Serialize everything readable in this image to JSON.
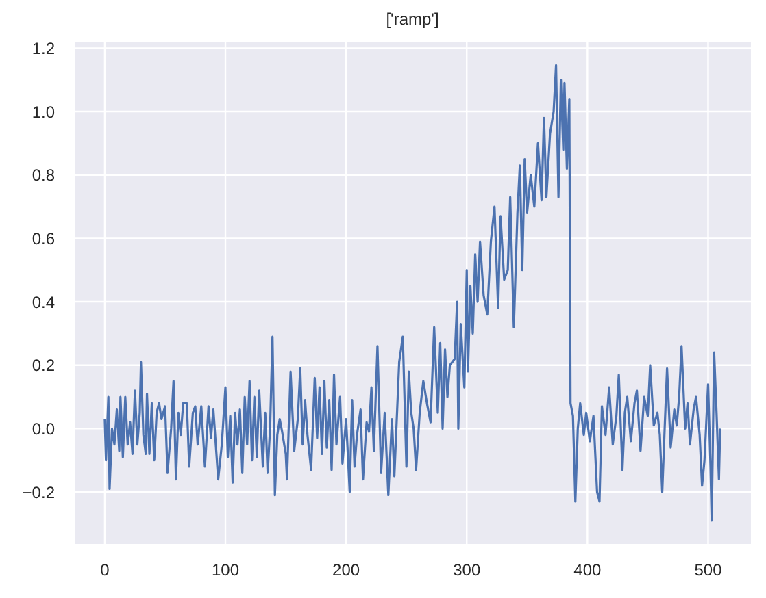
{
  "chart_data": {
    "type": "line",
    "title": "['ramp']",
    "xlim": [
      -25.5,
      535.5
    ],
    "ylim": [
      -0.366,
      1.218
    ],
    "xticks": [
      0,
      100,
      200,
      300,
      400,
      500
    ],
    "yticks": [
      {
        "value": -0.2,
        "label": "−0.2"
      },
      {
        "value": 0,
        "label": "0.0"
      },
      {
        "value": 0.2,
        "label": "0.2"
      },
      {
        "value": 0.4,
        "label": "0.4"
      },
      {
        "value": 0.6,
        "label": "0.6"
      },
      {
        "value": 0.8,
        "label": "0.8"
      },
      {
        "value": 1.0,
        "label": "1.0"
      },
      {
        "value": 1.2,
        "label": "1.2"
      }
    ],
    "grid": true,
    "marker": "none",
    "line_style": "solid",
    "series": [
      {
        "color": "#4c72b0",
        "x": [
          0,
          1,
          3,
          4,
          6,
          8,
          10,
          12,
          13,
          15,
          17,
          19,
          21,
          23,
          25,
          27,
          29,
          30,
          32,
          34,
          35,
          37,
          39,
          41,
          43,
          45,
          47,
          50,
          52,
          55,
          57,
          59,
          61,
          63,
          65,
          68,
          70,
          73,
          75,
          77,
          80,
          83,
          86,
          88,
          90,
          94,
          97,
          100,
          102,
          104,
          106,
          108,
          110,
          112,
          114,
          116,
          118,
          120,
          122,
          124,
          126,
          128,
          131,
          133,
          135,
          137,
          139,
          141,
          143,
          145,
          147,
          150,
          151,
          154,
          157,
          160,
          162,
          164,
          166,
          168,
          171,
          174,
          176,
          178,
          180,
          182,
          184,
          186,
          188,
          190,
          192,
          195,
          197,
          200,
          203,
          205,
          207,
          209,
          212,
          214,
          217,
          219,
          221,
          223,
          226,
          229,
          232,
          235,
          238,
          240,
          244,
          247,
          250,
          252,
          254,
          256,
          258,
          261,
          264,
          267,
          270,
          273,
          276,
          278,
          280,
          282,
          284,
          286,
          290,
          292,
          293,
          295,
          298,
          300,
          301,
          303,
          305,
          307,
          309,
          311,
          314,
          317,
          320,
          323,
          326,
          328,
          331,
          334,
          336,
          339,
          342,
          344,
          346,
          348,
          350,
          353,
          356,
          359,
          362,
          364,
          366,
          369,
          372,
          374,
          376,
          378,
          380,
          381,
          383,
          385,
          386,
          388,
          390,
          392,
          394,
          397,
          399,
          402,
          405,
          408,
          410,
          412,
          415,
          418,
          421,
          424,
          426,
          429,
          431,
          433,
          436,
          439,
          441,
          444,
          447,
          450,
          452,
          455,
          458,
          460,
          462,
          464,
          466,
          469,
          472,
          474,
          476,
          478,
          481,
          483,
          485,
          488,
          490,
          493,
          495,
          497,
          500,
          502,
          503,
          505,
          507,
          509,
          510
        ],
        "values": [
          0.03,
          -0.1,
          0.1,
          -0.19,
          0.0,
          -0.05,
          0.06,
          -0.07,
          0.1,
          -0.09,
          0.1,
          -0.05,
          0.02,
          -0.08,
          0.12,
          -0.05,
          0.05,
          0.21,
          -0.02,
          -0.08,
          0.11,
          -0.08,
          0.08,
          -0.1,
          0.05,
          0.08,
          0.03,
          0.07,
          -0.14,
          0.0,
          0.15,
          -0.16,
          0.05,
          -0.02,
          0.08,
          0.08,
          -0.12,
          0.05,
          0.07,
          -0.05,
          0.07,
          -0.12,
          0.07,
          -0.03,
          0.06,
          -0.16,
          -0.05,
          0.13,
          -0.09,
          0.04,
          -0.17,
          0.05,
          -0.05,
          0.06,
          -0.14,
          0.1,
          -0.05,
          0.15,
          -0.1,
          0.1,
          -0.09,
          0.12,
          -0.12,
          0.05,
          -0.14,
          0.0,
          0.29,
          -0.21,
          -0.02,
          0.03,
          -0.01,
          -0.08,
          -0.16,
          0.18,
          -0.07,
          0.03,
          0.19,
          -0.05,
          0.09,
          -0.02,
          -0.13,
          0.16,
          -0.03,
          0.13,
          -0.08,
          0.15,
          -0.06,
          0.09,
          -0.13,
          0.17,
          -0.05,
          0.1,
          -0.11,
          0.03,
          -0.2,
          0.09,
          -0.12,
          -0.02,
          0.06,
          -0.16,
          0.02,
          -0.01,
          0.13,
          -0.07,
          0.26,
          -0.14,
          0.05,
          -0.21,
          0.03,
          -0.15,
          0.21,
          0.29,
          -0.12,
          0.18,
          0.05,
          0.0,
          -0.13,
          0.05,
          0.15,
          0.08,
          0.02,
          0.32,
          0.05,
          0.27,
          0.0,
          0.25,
          0.1,
          0.2,
          0.22,
          0.4,
          0.0,
          0.33,
          0.13,
          0.5,
          0.18,
          0.45,
          0.3,
          0.55,
          0.4,
          0.59,
          0.42,
          0.36,
          0.59,
          0.7,
          0.38,
          0.67,
          0.47,
          0.5,
          0.73,
          0.32,
          0.68,
          0.83,
          0.5,
          0.85,
          0.68,
          0.8,
          0.7,
          0.9,
          0.72,
          0.98,
          0.73,
          0.93,
          1.0,
          1.146,
          0.73,
          1.1,
          0.88,
          1.09,
          0.82,
          1.04,
          0.08,
          0.04,
          -0.23,
          0.0,
          0.08,
          -0.02,
          0.05,
          -0.04,
          0.04,
          -0.2,
          -0.23,
          0.07,
          -0.02,
          0.13,
          -0.05,
          0.04,
          0.17,
          -0.13,
          0.05,
          0.1,
          -0.04,
          0.08,
          0.12,
          -0.07,
          0.1,
          0.04,
          0.2,
          0.01,
          0.05,
          -0.02,
          -0.2,
          0.0,
          0.19,
          -0.06,
          0.06,
          0.01,
          0.1,
          0.26,
          0.0,
          0.08,
          -0.05,
          0.06,
          0.1,
          -0.02,
          -0.18,
          -0.1,
          0.14,
          -0.12,
          -0.29,
          0.24,
          0.05,
          -0.16,
          0.0
        ]
      }
    ]
  }
}
